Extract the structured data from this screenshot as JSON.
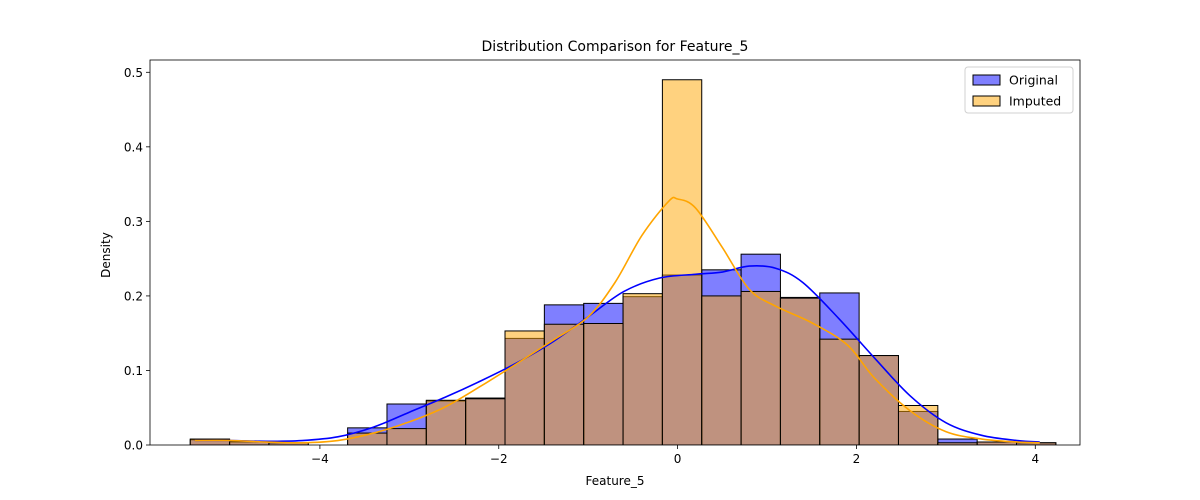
{
  "chart_data": {
    "type": "histogram",
    "title": "Distribution Comparison for Feature_5",
    "xlabel": "Feature_5",
    "ylabel": "Density",
    "xlim": [
      -5.9,
      4.5
    ],
    "ylim": [
      0,
      0.5165
    ],
    "xticks": [
      -4,
      -2,
      0,
      2,
      4
    ],
    "yticks": [
      0.0,
      0.1,
      0.2,
      0.3,
      0.4,
      0.5
    ],
    "xtick_labels": [
      "−4",
      "−2",
      "0",
      "2",
      "4"
    ],
    "ytick_labels": [
      "0.0",
      "0.1",
      "0.2",
      "0.3",
      "0.4",
      "0.5"
    ],
    "legend_position": "upper right",
    "series": [
      {
        "name": "Original",
        "color": "#0000ff",
        "fill_opacity": 0.5,
        "edges": [
          -5.45,
          -5.01,
          -4.57,
          -4.13,
          -3.69,
          -3.25,
          -2.81,
          -2.37,
          -1.93,
          -1.49,
          -1.05,
          -0.61,
          -0.17,
          0.27,
          0.71,
          1.15,
          1.59,
          2.03,
          2.47,
          2.91,
          3.35,
          3.79,
          4.23
        ],
        "values": [
          0.007,
          0.004,
          0.003,
          0.0,
          0.023,
          0.055,
          0.059,
          0.063,
          0.143,
          0.188,
          0.19,
          0.199,
          0.228,
          0.235,
          0.256,
          0.198,
          0.204,
          0.12,
          0.045,
          0.008,
          0.004,
          0.003
        ],
        "kde": [
          [
            -5.4,
            0.006
          ],
          [
            -5.0,
            0.006
          ],
          [
            -4.6,
            0.005
          ],
          [
            -4.2,
            0.006
          ],
          [
            -3.8,
            0.011
          ],
          [
            -3.4,
            0.024
          ],
          [
            -3.0,
            0.044
          ],
          [
            -2.6,
            0.064
          ],
          [
            -2.2,
            0.086
          ],
          [
            -1.8,
            0.11
          ],
          [
            -1.4,
            0.138
          ],
          [
            -1.0,
            0.172
          ],
          [
            -0.6,
            0.206
          ],
          [
            -0.2,
            0.224
          ],
          [
            0.2,
            0.229
          ],
          [
            0.5,
            0.232
          ],
          [
            0.8,
            0.24
          ],
          [
            1.1,
            0.237
          ],
          [
            1.4,
            0.218
          ],
          [
            1.8,
            0.17
          ],
          [
            2.2,
            0.117
          ],
          [
            2.6,
            0.066
          ],
          [
            3.0,
            0.03
          ],
          [
            3.4,
            0.013
          ],
          [
            3.8,
            0.006
          ],
          [
            4.05,
            0.004
          ]
        ]
      },
      {
        "name": "Imputed",
        "color": "#ffa500",
        "fill_opacity": 0.5,
        "edges": [
          -5.45,
          -5.01,
          -4.57,
          -4.13,
          -3.69,
          -3.25,
          -2.81,
          -2.37,
          -1.93,
          -1.49,
          -1.05,
          -0.61,
          -0.17,
          0.27,
          0.71,
          1.15,
          1.59,
          2.03,
          2.47,
          2.91,
          3.35,
          3.79,
          4.23
        ],
        "values": [
          0.008,
          0.005,
          0.003,
          0.0,
          0.016,
          0.022,
          0.06,
          0.062,
          0.153,
          0.162,
          0.163,
          0.203,
          0.49,
          0.2,
          0.206,
          0.197,
          0.142,
          0.12,
          0.053,
          0.003,
          0.004,
          0.003
        ],
        "kde": [
          [
            -5.4,
            0.006
          ],
          [
            -5.0,
            0.006
          ],
          [
            -4.6,
            0.004
          ],
          [
            -4.2,
            0.003
          ],
          [
            -3.8,
            0.006
          ],
          [
            -3.4,
            0.016
          ],
          [
            -3.0,
            0.031
          ],
          [
            -2.6,
            0.051
          ],
          [
            -2.2,
            0.079
          ],
          [
            -1.8,
            0.109
          ],
          [
            -1.4,
            0.14
          ],
          [
            -1.0,
            0.172
          ],
          [
            -0.7,
            0.218
          ],
          [
            -0.4,
            0.281
          ],
          [
            -0.1,
            0.327
          ],
          [
            0.0,
            0.33
          ],
          [
            0.2,
            0.318
          ],
          [
            0.5,
            0.265
          ],
          [
            0.8,
            0.209
          ],
          [
            1.1,
            0.186
          ],
          [
            1.5,
            0.164
          ],
          [
            1.9,
            0.134
          ],
          [
            2.2,
            0.09
          ],
          [
            2.6,
            0.046
          ],
          [
            3.0,
            0.018
          ],
          [
            3.4,
            0.008
          ],
          [
            3.8,
            0.004
          ],
          [
            4.05,
            0.003
          ]
        ]
      }
    ]
  }
}
